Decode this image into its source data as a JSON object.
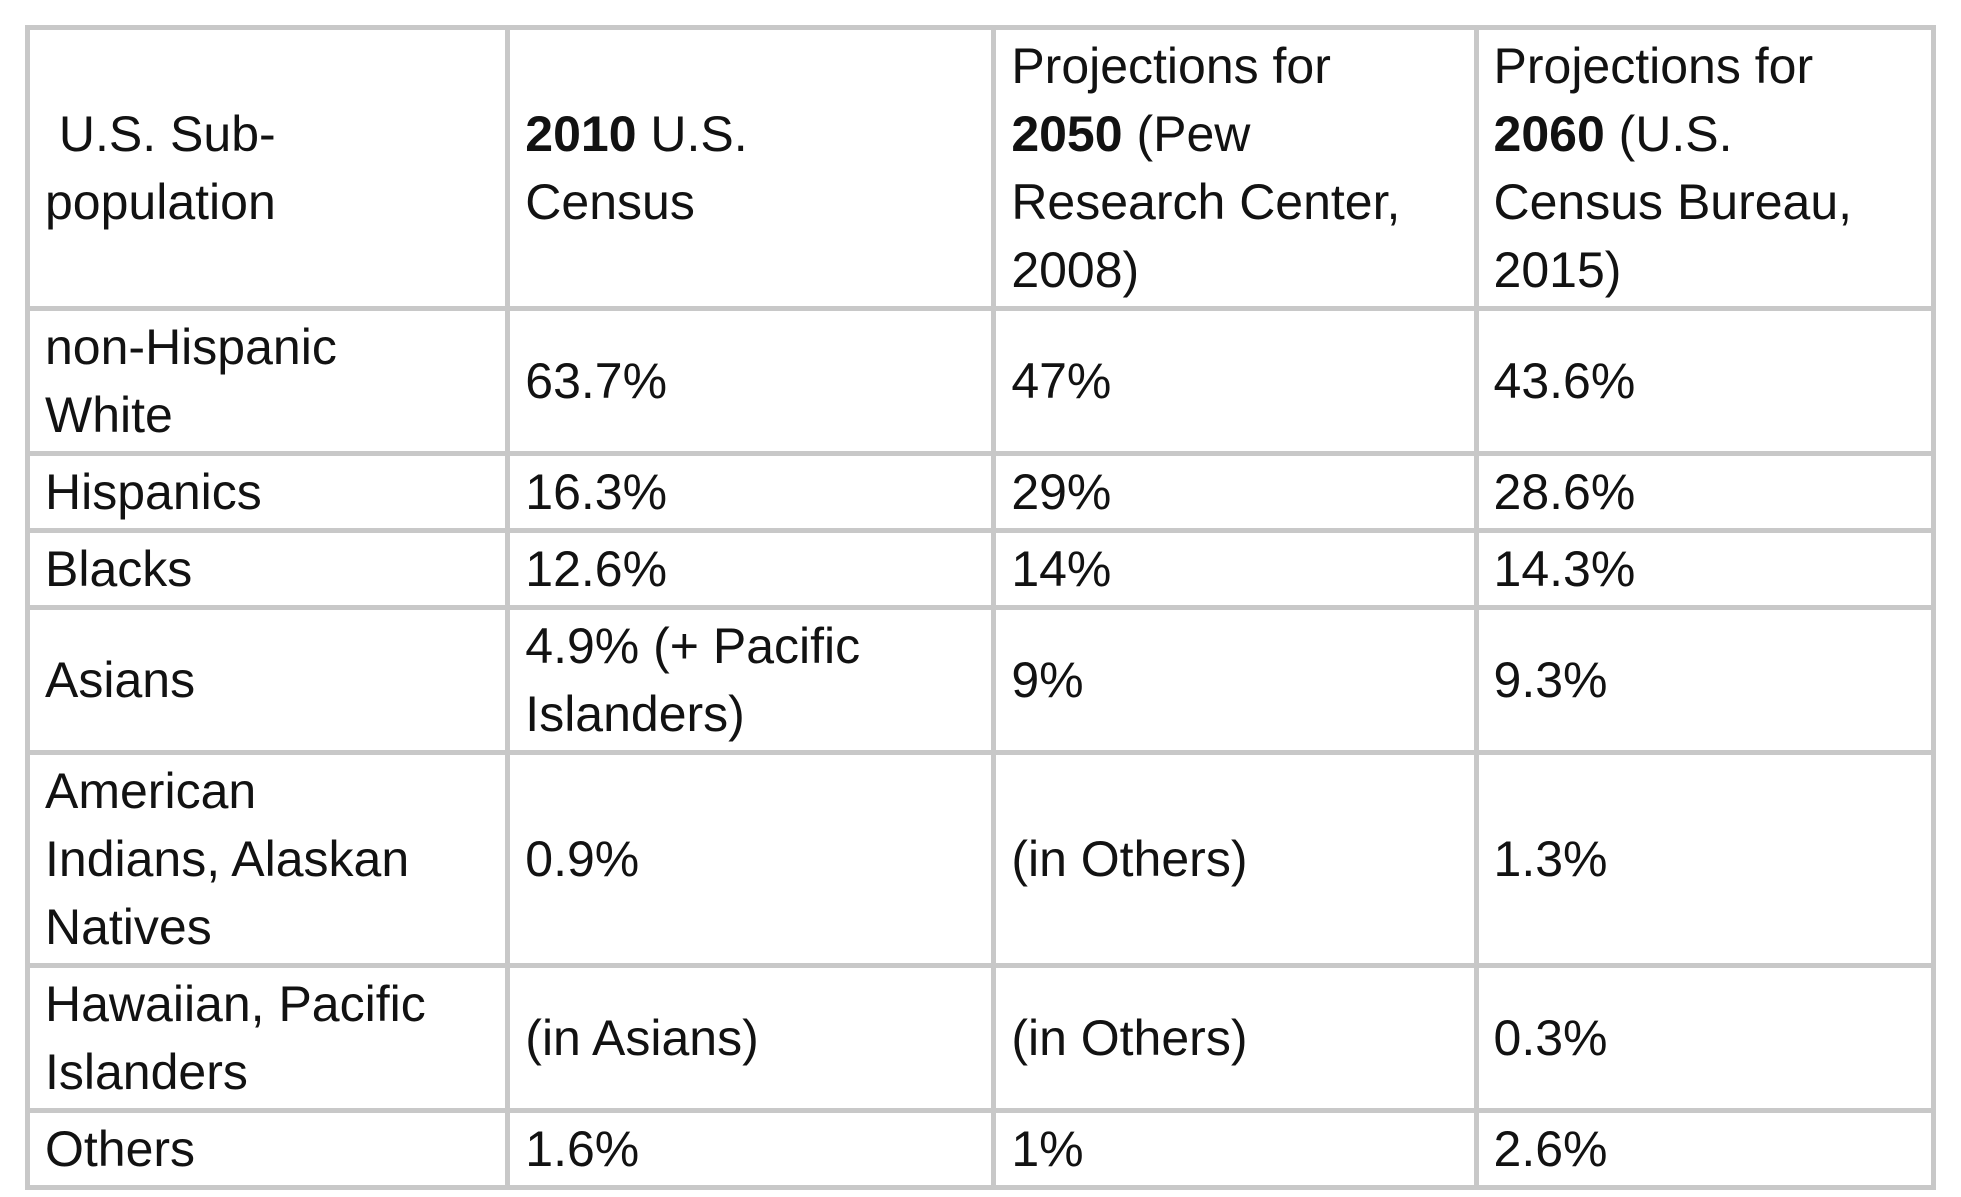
{
  "page": {
    "background_color": "#ffffff",
    "text_color": "#121212",
    "grid_color": "#c8c8c8"
  },
  "chart_data": {
    "type": "table",
    "title": "",
    "columns": [
      {
        "key": "subpopulation",
        "label": " U.S. Sub-population",
        "segments": [
          {
            "text": " U.S. Sub-population",
            "bold": false
          }
        ]
      },
      {
        "key": "census-2010",
        "label": "2010 U.S. Census",
        "segments": [
          {
            "text": "2010",
            "bold": true
          },
          {
            "text": " U.S. Census",
            "bold": false
          }
        ]
      },
      {
        "key": "projection-2050",
        "label": "Projections for 2050 (Pew Research Center, 2008)",
        "segments": [
          {
            "text": "Projections for ",
            "bold": false
          },
          {
            "text": "2050",
            "bold": true
          },
          {
            "text": " (Pew Research Center, 2008)",
            "bold": false
          }
        ]
      },
      {
        "key": "projection-2060",
        "label": "Projections for 2060 (U.S. Census Bureau, 2015)",
        "segments": [
          {
            "text": "Projections for ",
            "bold": false
          },
          {
            "text": "2060",
            "bold": true
          },
          {
            "text": " (U.S. Census Bureau, 2015)",
            "bold": false
          }
        ]
      }
    ],
    "rows": [
      {
        "label": "non-Hispanic White",
        "values": [
          "63.7%",
          "47%",
          "43.6%"
        ]
      },
      {
        "label": "Hispanics",
        "values": [
          "16.3%",
          "29%",
          "28.6%"
        ]
      },
      {
        "label": "Blacks",
        "values": [
          "12.6%",
          "14%",
          "14.3%"
        ]
      },
      {
        "label": "Asians",
        "values": [
          "4.9% (+ Pacific Islanders)",
          "9%",
          "9.3%"
        ]
      },
      {
        "label": "American Indians, Alaskan Natives",
        "values": [
          "0.9%",
          "(in Others)",
          "1.3%"
        ]
      },
      {
        "label": "Hawaiian, Pacific Islanders",
        "values": [
          "(in Asians)",
          "(in Others)",
          "0.3%"
        ]
      },
      {
        "label": "Others",
        "values": [
          "1.6%",
          "1%",
          "2.6%"
        ]
      }
    ],
    "layout": {
      "column_width_percents": [
        25.2,
        25.5,
        25.3,
        24.0
      ],
      "grid": true,
      "legend": "none"
    }
  }
}
